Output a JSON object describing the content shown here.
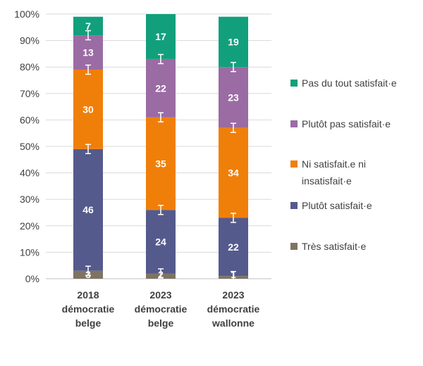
{
  "chart_data": {
    "type": "bar",
    "stacked": true,
    "categories": [
      [
        "2018",
        "démocratie",
        "belge"
      ],
      [
        "2023",
        "démocratie",
        "belge"
      ],
      [
        "2023",
        "démocratie",
        "wallonne"
      ]
    ],
    "ylim": [
      0,
      100
    ],
    "yticks": [
      "0%",
      "10%",
      "20%",
      "30%",
      "40%",
      "50%",
      "60%",
      "70%",
      "80%",
      "90%",
      "100%"
    ],
    "grid": true,
    "legend_position": "right",
    "series": [
      {
        "name": "Très satisfait·e",
        "color": "#7f7363",
        "values": [
          3,
          2,
          1
        ]
      },
      {
        "name": "Plutôt satisfait·e",
        "color": "#555a8c",
        "values": [
          46,
          24,
          22
        ]
      },
      {
        "name": "Ni satisfait.e ni insatisfait·e",
        "color": "#f07f09",
        "values": [
          30,
          35,
          34
        ]
      },
      {
        "name": "Plutôt pas satisfait·e",
        "color": "#9b6ba4",
        "values": [
          13,
          22,
          23
        ]
      },
      {
        "name": "Pas du tout satisfait·e",
        "color": "#12a07c",
        "values": [
          7,
          17,
          19
        ]
      }
    ],
    "legend_order": [
      {
        "name": "Pas du tout satisfait·e",
        "lines": [
          "Pas du tout satisfait·e"
        ],
        "color": "#12a07c"
      },
      {
        "name": "Plutôt pas satisfait·e",
        "lines": [
          "Plutôt pas satisfait·e"
        ],
        "color": "#9b6ba4"
      },
      {
        "name": "Ni satisfait.e ni insatisfait·e",
        "lines": [
          "Ni satisfait.e ni",
          "insatisfait·e"
        ],
        "color": "#f07f09"
      },
      {
        "name": "Plutôt satisfait·e",
        "lines": [
          "Plutôt satisfait·e"
        ],
        "color": "#555a8c"
      },
      {
        "name": "Très satisfait·e",
        "lines": [
          "Très satisfait·e"
        ],
        "color": "#7f7363"
      }
    ],
    "error_bar_color": "#ffffff"
  }
}
